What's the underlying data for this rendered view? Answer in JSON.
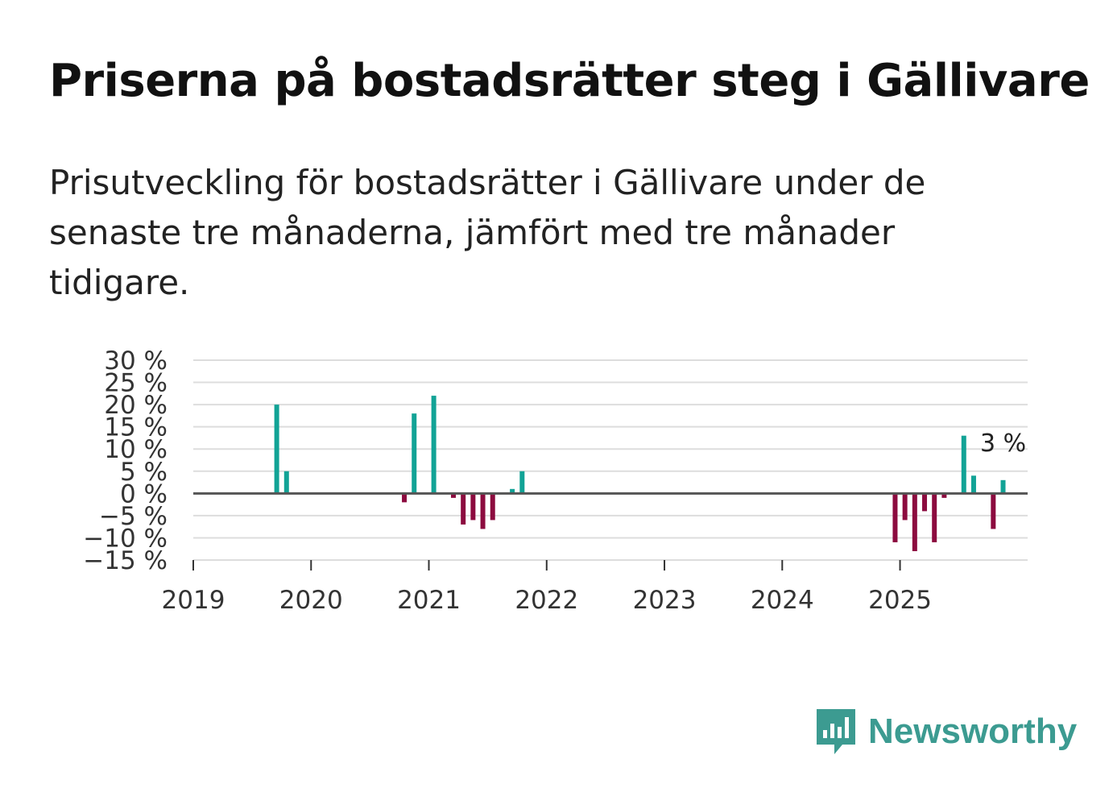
{
  "title": "Priserna på bostadsrätter steg i Gällivare",
  "subtitle": "Prisutveckling för bostadsrätter i Gällivare under de senaste tre månaderna, jämfört med tre månader tidigare.",
  "brand": "Newsworthy",
  "colors": {
    "positive": "#12a396",
    "negative": "#8c0b3f",
    "grid": "#dddddd",
    "zero_line": "#555555",
    "brand": "#3c9b91"
  },
  "chart_data": {
    "type": "bar",
    "ylim": [
      -15,
      30
    ],
    "yticks": [
      -15,
      -10,
      -5,
      0,
      5,
      10,
      15,
      20,
      25,
      30
    ],
    "ytick_labels": [
      "−15 %",
      "−10 %",
      "−5 %",
      "0 %",
      "5 %",
      "10 %",
      "15 %",
      "20 %",
      "25 %",
      "30 %"
    ],
    "xticks": [
      "2019",
      "2020",
      "2021",
      "2022",
      "2023",
      "2024",
      "2025"
    ],
    "x_range": [
      "2019-01",
      "2026-02"
    ],
    "end_label": "3 %",
    "series": [
      {
        "name": "Prisutveckling",
        "points": [
          {
            "date": "2019-09",
            "value": 20
          },
          {
            "date": "2019-10",
            "value": 5
          },
          {
            "date": "2020-10",
            "value": -2
          },
          {
            "date": "2020-11",
            "value": 18
          },
          {
            "date": "2021-01",
            "value": 22
          },
          {
            "date": "2021-03",
            "value": -1
          },
          {
            "date": "2021-04",
            "value": -7
          },
          {
            "date": "2021-05",
            "value": -6
          },
          {
            "date": "2021-06",
            "value": -8
          },
          {
            "date": "2021-07",
            "value": -6
          },
          {
            "date": "2021-09",
            "value": 1
          },
          {
            "date": "2021-10",
            "value": 5
          },
          {
            "date": "2024-12",
            "value": -11
          },
          {
            "date": "2025-01",
            "value": -6
          },
          {
            "date": "2025-02",
            "value": -13
          },
          {
            "date": "2025-03",
            "value": -4
          },
          {
            "date": "2025-04",
            "value": -11
          },
          {
            "date": "2025-05",
            "value": -1
          },
          {
            "date": "2025-07",
            "value": 13
          },
          {
            "date": "2025-08",
            "value": 4
          },
          {
            "date": "2025-10",
            "value": -8
          },
          {
            "date": "2025-11",
            "value": 3
          }
        ]
      }
    ]
  }
}
